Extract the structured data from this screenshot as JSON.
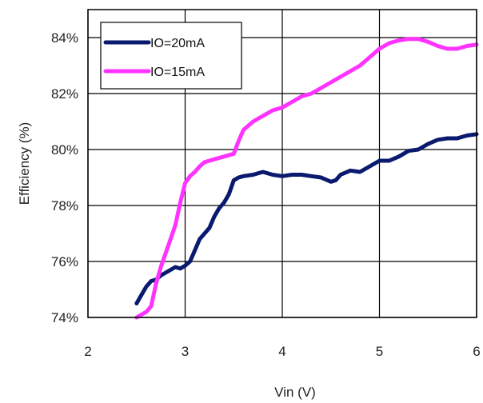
{
  "chart_data": {
    "type": "line",
    "title": "",
    "xlabel": "Vin (V)",
    "ylabel": "Efficiency (%)",
    "xlim": [
      2,
      6
    ],
    "ylim": [
      74,
      85
    ],
    "x_ticks": [
      2,
      3,
      4,
      5,
      6
    ],
    "x_tick_labels": [
      "2",
      "3",
      "4",
      "5",
      "6"
    ],
    "y_ticks": [
      74,
      76,
      78,
      80,
      82,
      84
    ],
    "y_tick_labels": [
      "74%",
      "76%",
      "78%",
      "80%",
      "82%",
      "84%"
    ],
    "grid": true,
    "legend_position": "top-left",
    "series": [
      {
        "name": "IO=20mA",
        "color": "#0a1a6e",
        "points": [
          [
            2.5,
            74.5
          ],
          [
            2.55,
            74.8
          ],
          [
            2.6,
            75.1
          ],
          [
            2.65,
            75.3
          ],
          [
            2.7,
            75.35
          ],
          [
            2.75,
            75.5
          ],
          [
            2.8,
            75.6
          ],
          [
            2.85,
            75.7
          ],
          [
            2.9,
            75.8
          ],
          [
            2.95,
            75.75
          ],
          [
            3.0,
            75.85
          ],
          [
            3.05,
            76.0
          ],
          [
            3.1,
            76.4
          ],
          [
            3.15,
            76.8
          ],
          [
            3.2,
            77.0
          ],
          [
            3.25,
            77.2
          ],
          [
            3.3,
            77.6
          ],
          [
            3.35,
            77.9
          ],
          [
            3.4,
            78.1
          ],
          [
            3.45,
            78.4
          ],
          [
            3.5,
            78.9
          ],
          [
            3.55,
            79.0
          ],
          [
            3.6,
            79.05
          ],
          [
            3.7,
            79.1
          ],
          [
            3.8,
            79.2
          ],
          [
            3.9,
            79.1
          ],
          [
            4.0,
            79.05
          ],
          [
            4.1,
            79.1
          ],
          [
            4.2,
            79.1
          ],
          [
            4.3,
            79.05
          ],
          [
            4.4,
            79.0
          ],
          [
            4.5,
            78.85
          ],
          [
            4.55,
            78.9
          ],
          [
            4.6,
            79.1
          ],
          [
            4.7,
            79.25
          ],
          [
            4.8,
            79.2
          ],
          [
            4.9,
            79.4
          ],
          [
            5.0,
            79.6
          ],
          [
            5.1,
            79.6
          ],
          [
            5.2,
            79.75
          ],
          [
            5.3,
            79.95
          ],
          [
            5.4,
            80.0
          ],
          [
            5.5,
            80.2
          ],
          [
            5.6,
            80.35
          ],
          [
            5.7,
            80.4
          ],
          [
            5.8,
            80.4
          ],
          [
            5.9,
            80.5
          ],
          [
            6.0,
            80.55
          ]
        ]
      },
      {
        "name": "IO=15mA",
        "color": "#ff33ff",
        "points": [
          [
            2.5,
            74.0
          ],
          [
            2.6,
            74.2
          ],
          [
            2.65,
            74.4
          ],
          [
            2.7,
            75.2
          ],
          [
            2.75,
            75.8
          ],
          [
            2.8,
            76.3
          ],
          [
            2.85,
            76.8
          ],
          [
            2.9,
            77.3
          ],
          [
            2.95,
            78.1
          ],
          [
            3.0,
            78.8
          ],
          [
            3.05,
            79.05
          ],
          [
            3.1,
            79.2
          ],
          [
            3.15,
            79.4
          ],
          [
            3.2,
            79.55
          ],
          [
            3.25,
            79.6
          ],
          [
            3.3,
            79.65
          ],
          [
            3.4,
            79.75
          ],
          [
            3.5,
            79.85
          ],
          [
            3.55,
            80.3
          ],
          [
            3.6,
            80.7
          ],
          [
            3.7,
            81.0
          ],
          [
            3.8,
            81.2
          ],
          [
            3.85,
            81.3
          ],
          [
            3.9,
            81.4
          ],
          [
            4.0,
            81.5
          ],
          [
            4.1,
            81.7
          ],
          [
            4.2,
            81.9
          ],
          [
            4.3,
            82.0
          ],
          [
            4.4,
            82.2
          ],
          [
            4.5,
            82.4
          ],
          [
            4.6,
            82.6
          ],
          [
            4.7,
            82.8
          ],
          [
            4.8,
            83.0
          ],
          [
            4.9,
            83.3
          ],
          [
            5.0,
            83.6
          ],
          [
            5.1,
            83.8
          ],
          [
            5.2,
            83.9
          ],
          [
            5.3,
            83.95
          ],
          [
            5.4,
            83.95
          ],
          [
            5.5,
            83.85
          ],
          [
            5.6,
            83.7
          ],
          [
            5.7,
            83.6
          ],
          [
            5.8,
            83.6
          ],
          [
            5.9,
            83.7
          ],
          [
            6.0,
            83.75
          ]
        ]
      }
    ]
  }
}
